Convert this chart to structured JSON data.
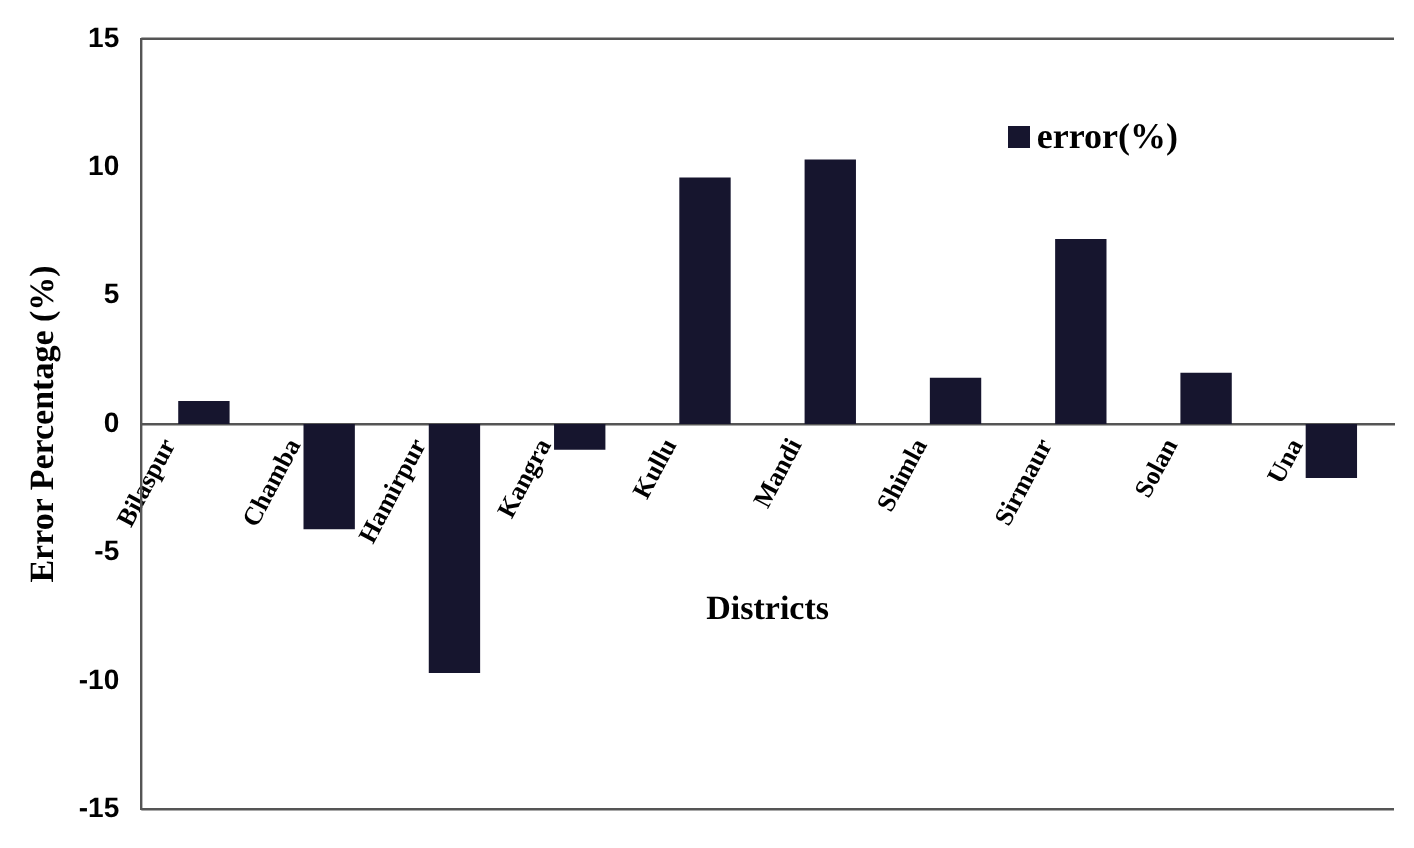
{
  "chart_data": {
    "type": "bar",
    "xlabel": "Districts",
    "ylabel": "Error Percentage (%)",
    "categories": [
      "Bilaspur",
      "Chamba",
      "Hamirpur",
      "Kangra",
      "Kullu",
      "Mandi",
      "Shimla",
      "Sirmaur",
      "Solan",
      "Una"
    ],
    "series": [
      {
        "name": "error(%)",
        "color": "#16152e",
        "values": [
          0.9,
          -4.1,
          -9.7,
          -1.0,
          9.6,
          10.3,
          1.8,
          7.2,
          2.0,
          -2.1
        ]
      }
    ],
    "ylim": [
      -15,
      15
    ],
    "yticks": [
      -15,
      -10,
      -5,
      0,
      5,
      10,
      15
    ],
    "grid": false,
    "legend": "top right"
  }
}
